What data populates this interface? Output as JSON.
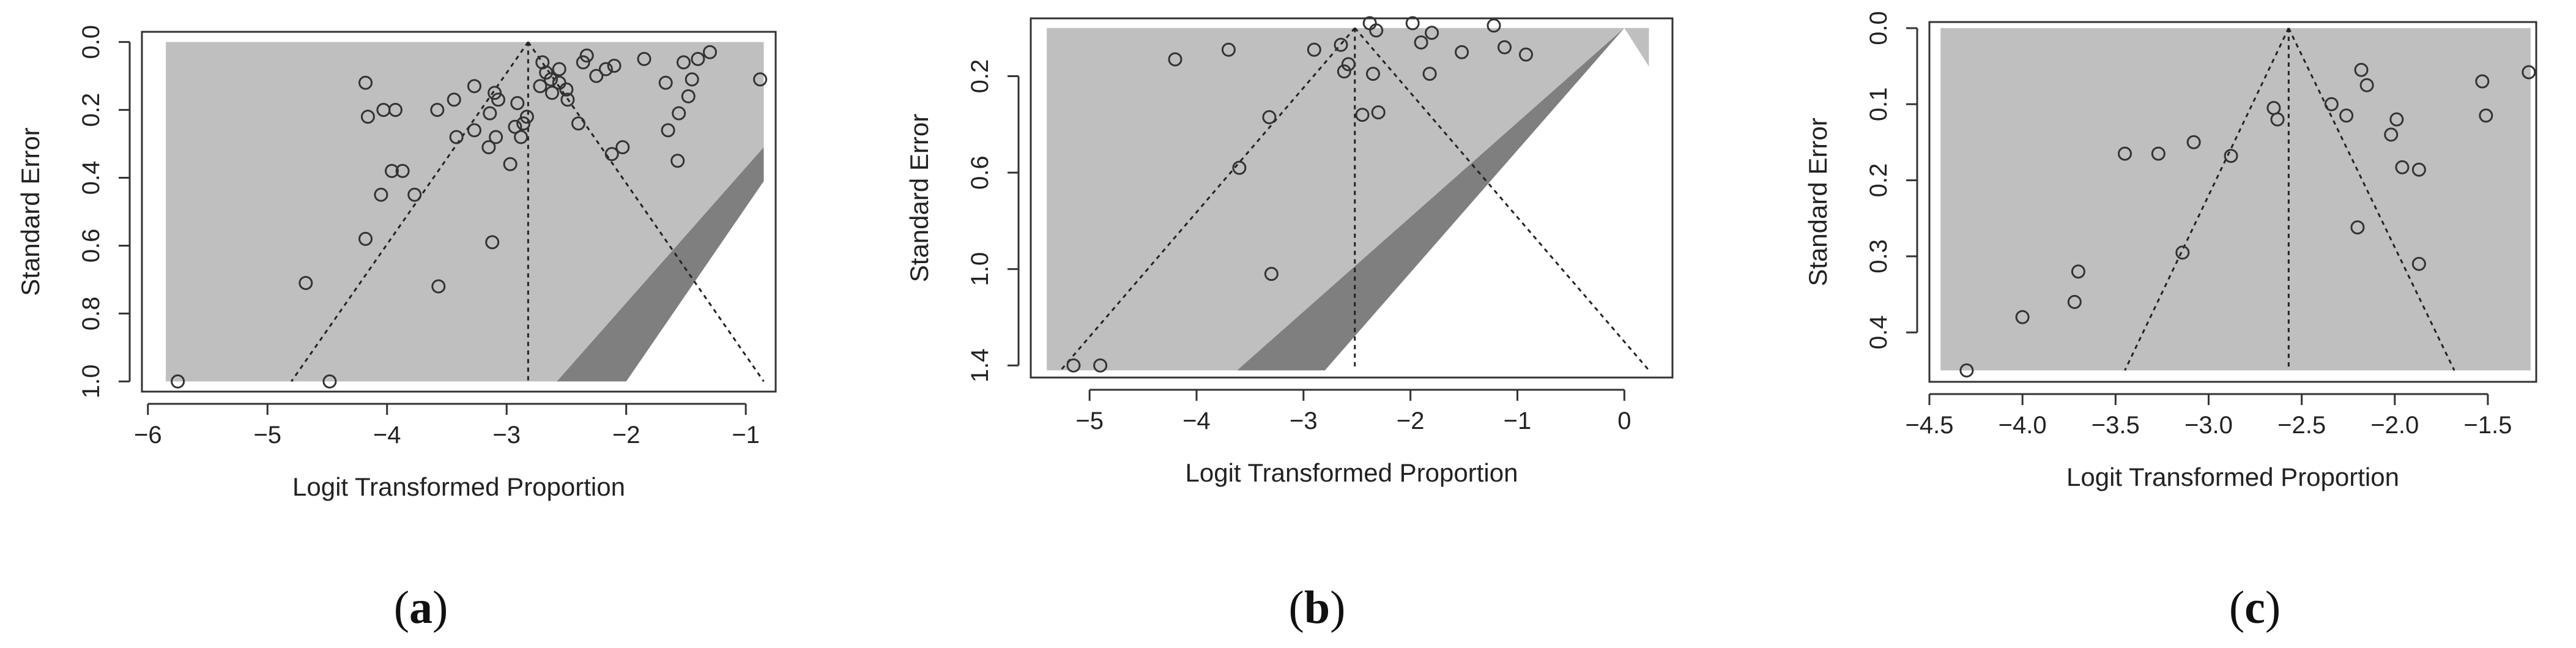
{
  "chart_data": [
    {
      "panel": "a",
      "caption_open": "(",
      "caption_letter": "a",
      "caption_close": ")",
      "type": "scatter",
      "subtype": "funnel plot",
      "xlabel": "Logit Transformed Proportion",
      "ylabel": "Standard Error",
      "xlim": [
        -6.05,
        -0.75
      ],
      "ylim": [
        1.03,
        -0.03
      ],
      "y_reversed": true,
      "xticks": [
        -6,
        -5,
        -4,
        -3,
        -2,
        -1
      ],
      "xtick_labels": [
        "−6",
        "−5",
        "−4",
        "−3",
        "−2",
        "−1"
      ],
      "yticks": [
        0.0,
        0.2,
        0.4,
        0.6,
        0.8,
        1.0
      ],
      "ytick_labels": [
        "0.0",
        "0.2",
        "0.4",
        "0.6",
        "0.8",
        "1.0"
      ],
      "center": -2.82,
      "funnel": {
        "lower_at_max": -4.8,
        "upper_at_max": -0.85,
        "se_max": 1.0
      },
      "contours": [
        {
          "color": "#bfbfbf",
          "points": [
            [
              -5.85,
              0.0
            ],
            [
              -0.85,
              0.0
            ],
            [
              -0.85,
              0.31
            ],
            [
              -2.58,
              1.0
            ],
            [
              -5.85,
              1.0
            ]
          ]
        },
        {
          "color": "#7f7f7f",
          "points": [
            [
              -0.85,
              0.31
            ],
            [
              -0.85,
              0.41
            ],
            [
              -2.0,
              1.0
            ],
            [
              -2.58,
              1.0
            ]
          ]
        }
      ],
      "points": [
        [
          -5.75,
          1.0
        ],
        [
          -4.68,
          0.71
        ],
        [
          -4.48,
          1.0
        ],
        [
          -4.18,
          0.12
        ],
        [
          -4.16,
          0.22
        ],
        [
          -4.18,
          0.58
        ],
        [
          -4.03,
          0.2
        ],
        [
          -4.05,
          0.45
        ],
        [
          -3.93,
          0.2
        ],
        [
          -3.96,
          0.38
        ],
        [
          -3.87,
          0.38
        ],
        [
          -3.77,
          0.45
        ],
        [
          -3.58,
          0.2
        ],
        [
          -3.57,
          0.72
        ],
        [
          -3.42,
          0.28
        ],
        [
          -3.44,
          0.17
        ],
        [
          -3.27,
          0.13
        ],
        [
          -3.27,
          0.26
        ],
        [
          -3.15,
          0.31
        ],
        [
          -3.14,
          0.21
        ],
        [
          -3.1,
          0.15
        ],
        [
          -3.07,
          0.17
        ],
        [
          -3.09,
          0.28
        ],
        [
          -3.12,
          0.59
        ],
        [
          -2.97,
          0.36
        ],
        [
          -2.93,
          0.25
        ],
        [
          -2.91,
          0.18
        ],
        [
          -2.88,
          0.28
        ],
        [
          -2.86,
          0.24
        ],
        [
          -2.83,
          0.22
        ],
        [
          -2.72,
          0.13
        ],
        [
          -2.7,
          0.06
        ],
        [
          -2.67,
          0.09
        ],
        [
          -2.63,
          0.11
        ],
        [
          -2.62,
          0.15
        ],
        [
          -2.56,
          0.12
        ],
        [
          -2.56,
          0.08
        ],
        [
          -2.5,
          0.14
        ],
        [
          -2.49,
          0.17
        ],
        [
          -2.4,
          0.24
        ],
        [
          -2.36,
          0.06
        ],
        [
          -2.33,
          0.04
        ],
        [
          -2.25,
          0.1
        ],
        [
          -2.17,
          0.08
        ],
        [
          -2.1,
          0.07
        ],
        [
          -2.12,
          0.33
        ],
        [
          -2.03,
          0.31
        ],
        [
          -1.85,
          0.05
        ],
        [
          -1.67,
          0.12
        ],
        [
          -1.65,
          0.26
        ],
        [
          -1.57,
          0.35
        ],
        [
          -1.56,
          0.21
        ],
        [
          -1.52,
          0.06
        ],
        [
          -1.48,
          0.16
        ],
        [
          -1.45,
          0.11
        ],
        [
          -1.4,
          0.05
        ],
        [
          -1.3,
          0.03
        ],
        [
          -0.88,
          0.11
        ]
      ]
    },
    {
      "panel": "b",
      "caption_open": "(",
      "caption_letter": "b",
      "caption_close": ")",
      "type": "scatter",
      "subtype": "funnel plot",
      "xlabel": "Logit Transformed Proportion",
      "ylabel": "Standard Error",
      "xlim": [
        -5.55,
        0.45
      ],
      "ylim": [
        1.45,
        -0.04
      ],
      "y_reversed": true,
      "xticks": [
        -5,
        -4,
        -3,
        -2,
        -1,
        0
      ],
      "xtick_labels": [
        "−5",
        "−4",
        "−3",
        "−2",
        "−1",
        "0"
      ],
      "yticks": [
        0.2,
        0.6,
        1.0,
        1.4
      ],
      "ytick_labels": [
        "0.2",
        "0.6",
        "1.0",
        "1.4"
      ],
      "center": -2.52,
      "funnel": {
        "lower_at_max": -5.27,
        "upper_at_max": 0.23,
        "se_max": 1.42
      },
      "contours": [
        {
          "color": "#bfbfbf",
          "points": [
            [
              -5.4,
              0.0
            ],
            [
              0.0,
              0.0
            ],
            [
              -2.8,
              1.42
            ],
            [
              -5.4,
              1.42
            ]
          ]
        },
        {
          "color": "#7f7f7f",
          "points": [
            [
              0.0,
              0.0
            ],
            [
              -2.8,
              1.42
            ],
            [
              -3.62,
              1.42
            ]
          ]
        },
        {
          "color": "#bfbfbf",
          "points": [
            [
              0.0,
              0.0
            ],
            [
              0.23,
              0.0
            ],
            [
              0.23,
              0.16
            ]
          ]
        }
      ],
      "points": [
        [
          -5.15,
          1.4
        ],
        [
          -4.9,
          1.4
        ],
        [
          -4.2,
          0.13
        ],
        [
          -3.7,
          0.09
        ],
        [
          -3.6,
          0.58
        ],
        [
          -3.32,
          0.37
        ],
        [
          -3.3,
          1.02
        ],
        [
          -2.9,
          0.09
        ],
        [
          -2.65,
          0.07
        ],
        [
          -2.62,
          0.18
        ],
        [
          -2.58,
          0.15
        ],
        [
          -2.45,
          0.36
        ],
        [
          -2.38,
          -0.02
        ],
        [
          -2.35,
          0.19
        ],
        [
          -2.32,
          0.01
        ],
        [
          -2.3,
          0.35
        ],
        [
          -1.98,
          -0.02
        ],
        [
          -1.9,
          0.06
        ],
        [
          -1.82,
          0.19
        ],
        [
          -1.8,
          0.02
        ],
        [
          -1.52,
          0.1
        ],
        [
          -1.22,
          -0.01
        ],
        [
          -1.12,
          0.08
        ],
        [
          -0.92,
          0.11
        ]
      ]
    },
    {
      "panel": "c",
      "caption_open": "(",
      "caption_letter": "c",
      "caption_close": ")",
      "type": "scatter",
      "subtype": "funnel plot",
      "xlabel": "Logit Transformed Proportion",
      "ylabel": "Standard Error",
      "xlim": [
        -4.5,
        -1.24
      ],
      "ylim": [
        0.465,
        -0.008
      ],
      "y_reversed": true,
      "xticks": [
        -4.5,
        -4.0,
        -3.5,
        -3.0,
        -2.5,
        -2.0,
        -1.5
      ],
      "xtick_labels": [
        "−4.5",
        "−4.0",
        "−3.5",
        "−3.0",
        "−2.5",
        "−2.0",
        "−1.5"
      ],
      "yticks": [
        0.0,
        0.1,
        0.2,
        0.3,
        0.4
      ],
      "ytick_labels": [
        "0.0",
        "0.1",
        "0.2",
        "0.3",
        "0.4"
      ],
      "center": -2.57,
      "funnel": {
        "lower_at_max": -3.45,
        "upper_at_max": -1.68,
        "se_max": 0.45
      },
      "contours": [
        {
          "color": "#bfbfbf",
          "points": [
            [
              -4.44,
              0.0
            ],
            [
              -1.27,
              0.0
            ],
            [
              -1.27,
              0.45
            ],
            [
              -4.44,
              0.45
            ]
          ]
        }
      ],
      "points": [
        [
          -4.3,
          0.45
        ],
        [
          -4.0,
          0.38
        ],
        [
          -3.72,
          0.36
        ],
        [
          -3.7,
          0.32
        ],
        [
          -3.45,
          0.165
        ],
        [
          -3.27,
          0.165
        ],
        [
          -3.08,
          0.15
        ],
        [
          -3.14,
          0.295
        ],
        [
          -2.88,
          0.168
        ],
        [
          -2.65,
          0.105
        ],
        [
          -2.63,
          0.12
        ],
        [
          -2.34,
          0.1
        ],
        [
          -2.26,
          0.115
        ],
        [
          -2.18,
          0.055
        ],
        [
          -2.15,
          0.075
        ],
        [
          -2.2,
          0.262
        ],
        [
          -2.02,
          0.14
        ],
        [
          -1.99,
          0.12
        ],
        [
          -1.96,
          0.183
        ],
        [
          -1.87,
          0.186
        ],
        [
          -1.87,
          0.31
        ],
        [
          -1.53,
          0.07
        ],
        [
          -1.51,
          0.115
        ],
        [
          -1.28,
          0.058
        ]
      ]
    }
  ]
}
